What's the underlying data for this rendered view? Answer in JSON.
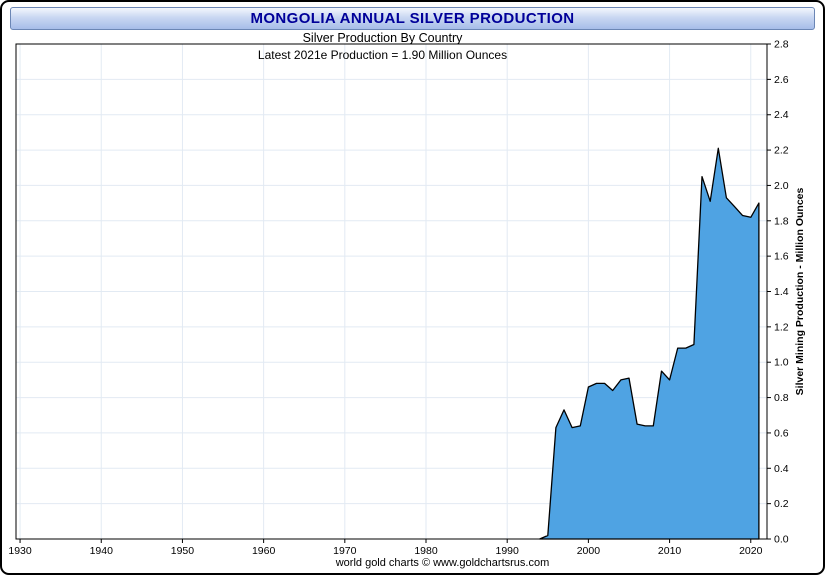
{
  "header": {
    "title": "MONGOLIA ANNUAL SILVER PRODUCTION"
  },
  "chart_data": {
    "type": "area",
    "title": "Silver Production By Country",
    "subtitle": "Latest 2021e Production = 1.90 Million Ounces",
    "ylabel": "Silver Mining Production - Million Ounces",
    "xlabel": "",
    "xlim": [
      1929.5,
      2022
    ],
    "ylim": [
      0,
      2.8
    ],
    "ytick_step": 0.2,
    "xticks": [
      1930,
      1940,
      1950,
      1960,
      1970,
      1980,
      1990,
      2000,
      2010,
      2020
    ],
    "x": [
      1994,
      1995,
      1996,
      1997,
      1998,
      1999,
      2000,
      2001,
      2002,
      2003,
      2004,
      2005,
      2006,
      2007,
      2008,
      2009,
      2010,
      2011,
      2012,
      2013,
      2014,
      2015,
      2016,
      2017,
      2018,
      2019,
      2020,
      2021
    ],
    "values": [
      0.0,
      0.02,
      0.63,
      0.73,
      0.63,
      0.64,
      0.86,
      0.88,
      0.88,
      0.84,
      0.9,
      0.91,
      0.65,
      0.64,
      0.64,
      0.95,
      0.9,
      1.08,
      1.08,
      1.1,
      2.05,
      1.91,
      2.21,
      1.93,
      1.88,
      1.83,
      1.82,
      1.9
    ],
    "latest_year": "2021e",
    "latest_value_million_oz": 1.9,
    "grid": true,
    "legend_position": "none",
    "fill_color": "#4FA3E3",
    "line_color": "#000000",
    "grid_color": "#E2EAF3"
  },
  "footer": {
    "credit": "world gold charts © www.goldchartsrus.com"
  }
}
